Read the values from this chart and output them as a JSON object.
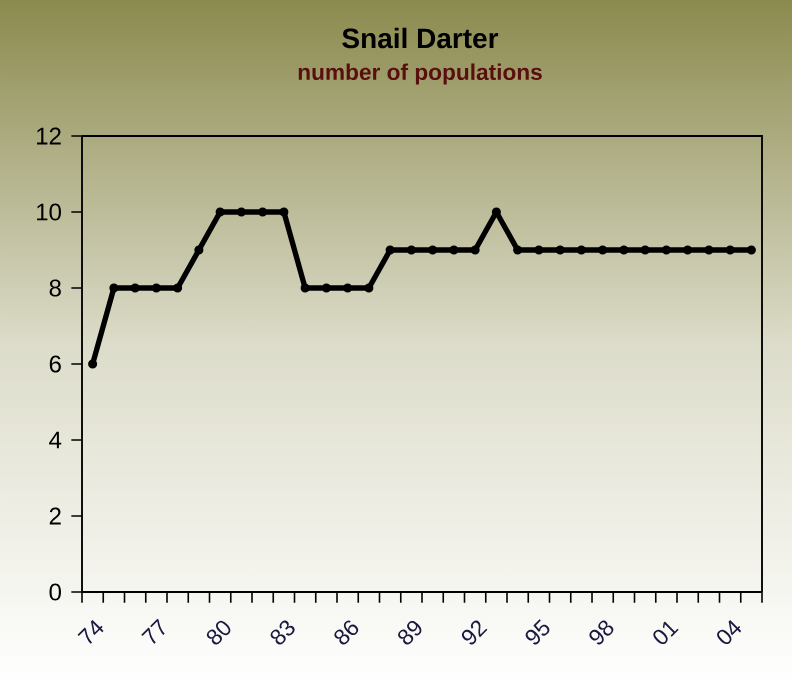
{
  "chart_data": {
    "type": "line",
    "title": "Snail Darter",
    "subtitle": "number of populations",
    "categories": [
      "74",
      null,
      null,
      "77",
      null,
      null,
      "80",
      null,
      null,
      "83",
      null,
      null,
      "86",
      null,
      null,
      "89",
      null,
      null,
      "92",
      null,
      null,
      "95",
      null,
      null,
      "98",
      null,
      null,
      "01",
      null,
      null,
      "04",
      null
    ],
    "values": [
      6,
      8,
      8,
      8,
      8,
      9,
      10,
      10,
      10,
      10,
      8,
      8,
      8,
      8,
      9,
      9,
      9,
      9,
      9,
      10,
      9,
      9,
      9,
      9,
      9,
      9,
      9,
      9,
      9,
      9,
      9,
      9
    ],
    "color": "#000000",
    "ylim": [
      0,
      12
    ],
    "yticks": [
      0,
      2,
      4,
      6,
      8,
      10,
      12
    ],
    "marker": "circle",
    "line_style": "solid"
  }
}
